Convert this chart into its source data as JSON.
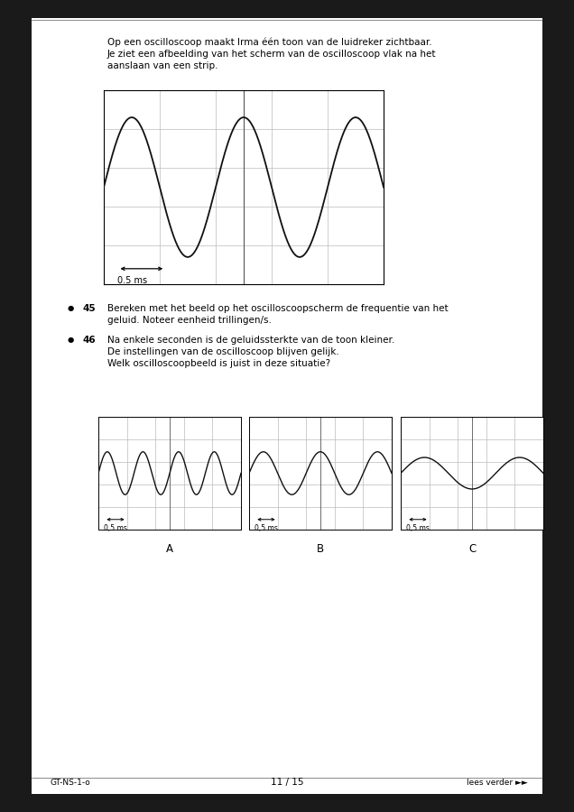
{
  "page_bg": "#1a1a1a",
  "content_bg": "#ffffff",
  "text_color": "#000000",
  "intro_text_line1": "Op een oscilloscoop maakt Irma één toon van de luidreker zichtbaar.",
  "intro_text_line2": "Je ziet een afbeelding van het scherm van de oscilloscoop vlak na het",
  "intro_text_line3": "aanslaan van een strip.",
  "q_bullet": "●",
  "q45_num": "45",
  "q45_text_line1": "Bereken met het beeld op het oscilloscoopscherm de frequentie van het",
  "q45_text_line2": "geluid. Noteer eenheid trillingen/s.",
  "q46_num": "46",
  "q46_text_line1": "Na enkele seconden is de geluidssterkte van de toon kleiner.",
  "q46_text_line2": "De instellingen van de oscilloscoop blijven gelijk.",
  "q46_text_line3": "Welk oscilloscoopbeeld is juist in deze situatie?",
  "footer_left": "GT-NS-1-o",
  "footer_center": "11 / 15",
  "footer_right": "lees verder ►►",
  "scale_label_main": "0.5 ms",
  "scale_label_sub": "0,5 ms",
  "main_wave_cycles": 2.5,
  "main_wave_amplitude": 0.72,
  "main_grid_cols": 5,
  "main_grid_rows": 5,
  "sub_labels": [
    "A",
    "B",
    "C"
  ],
  "sub_A_cycles": 4.0,
  "sub_A_amplitude": 0.38,
  "sub_B_cycles": 2.5,
  "sub_B_amplitude": 0.38,
  "sub_C_cycles": 1.5,
  "sub_C_amplitude": 0.28,
  "grid_color": "#bbbbbb",
  "center_line_color": "#555555",
  "wave_color": "#111111",
  "border_color": "#000000"
}
